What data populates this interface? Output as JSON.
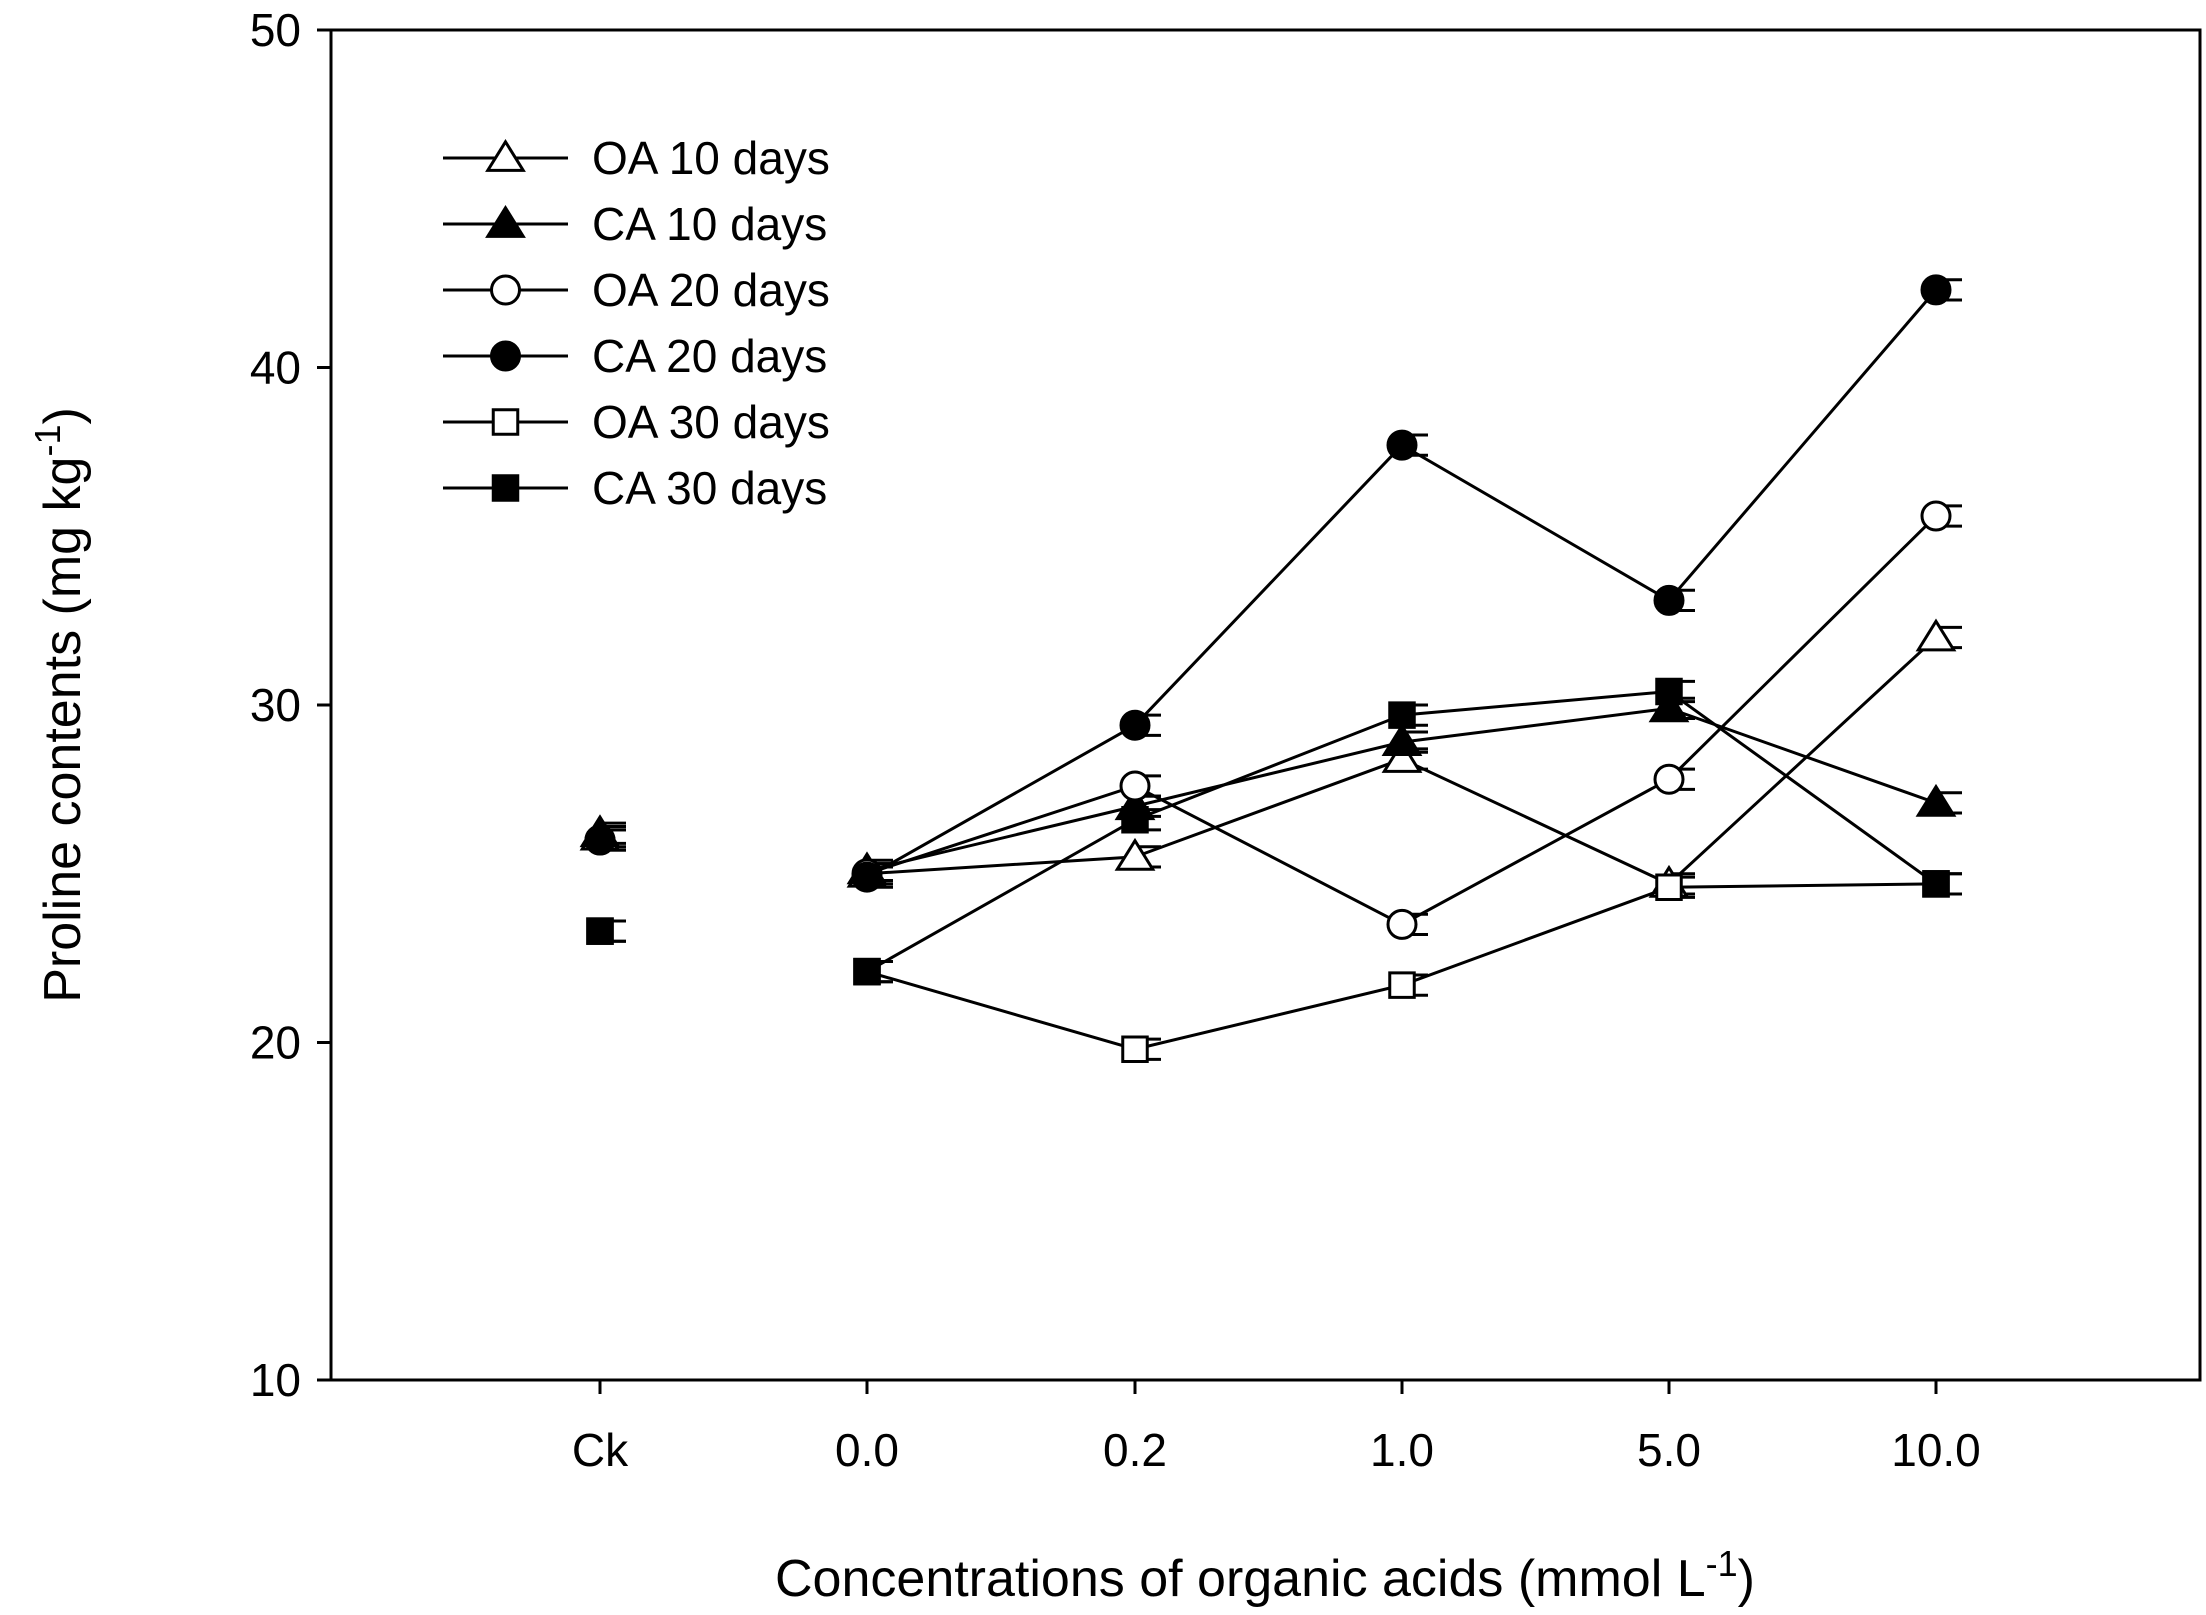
{
  "chart_data": {
    "type": "line",
    "title": "",
    "xlabel": "Concentrations of organic acids (mmol L",
    "xlabel_sup": "-1",
    "xlabel_tail": ")",
    "ylabel": "Proline contents (mg kg",
    "ylabel_sup": "-1",
    "ylabel_tail": ")",
    "ylim": [
      10,
      50
    ],
    "yticks": [
      "10",
      "20",
      "30",
      "40",
      "50"
    ],
    "categories": [
      "Ck",
      "0.0",
      "0.2",
      "1.0",
      "5.0",
      "10.0"
    ],
    "legend_position": "top-left",
    "series": [
      {
        "name": "OA 10 days",
        "marker": "triangle",
        "filled": false,
        "values": [
          26.1,
          25.0,
          25.5,
          28.4,
          24.7,
          32.0
        ],
        "errors": [
          0.3,
          0.3,
          0.3,
          0.3,
          0.3,
          0.3
        ]
      },
      {
        "name": "CA 10 days",
        "marker": "triangle",
        "filled": true,
        "values": [
          26.2,
          25.1,
          27.0,
          28.9,
          29.9,
          27.1
        ],
        "errors": [
          0.3,
          0.3,
          0.3,
          0.3,
          0.3,
          0.3
        ]
      },
      {
        "name": "OA 20 days",
        "marker": "circle",
        "filled": false,
        "values": [
          26.0,
          25.0,
          27.6,
          23.5,
          27.8,
          35.6
        ],
        "errors": [
          0.3,
          0.3,
          0.3,
          0.3,
          0.3,
          0.3
        ]
      },
      {
        "name": "CA 20 days",
        "marker": "circle",
        "filled": true,
        "values": [
          26.0,
          24.9,
          29.4,
          37.7,
          33.1,
          42.3
        ],
        "errors": [
          0.3,
          0.3,
          0.3,
          0.3,
          0.3,
          0.3
        ]
      },
      {
        "name": "OA 30 days",
        "marker": "square",
        "filled": false,
        "values": [
          23.3,
          22.1,
          19.8,
          21.7,
          24.6,
          24.7
        ],
        "errors": [
          0.3,
          0.3,
          0.3,
          0.3,
          0.3,
          0.3
        ]
      },
      {
        "name": "CA 30 days",
        "marker": "square",
        "filled": true,
        "values": [
          23.3,
          22.1,
          26.6,
          29.7,
          30.4,
          24.7
        ],
        "errors": [
          0.3,
          0.3,
          0.3,
          0.3,
          0.3,
          0.3
        ]
      }
    ],
    "colors": {
      "line": "#000000",
      "background": "#ffffff"
    }
  }
}
